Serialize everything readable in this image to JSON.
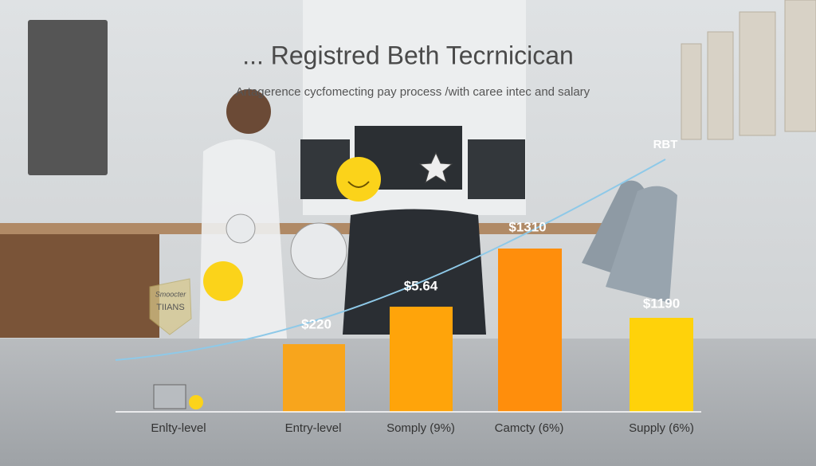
{
  "header": {
    "title": "... Registred Beth Tecrnicican",
    "subtitle": "Artagerence cycfomecting pay process /with caree intec and salary"
  },
  "trend_label": "RBT",
  "badge": {
    "top": "Smoocter",
    "bottom": "TIIANS"
  },
  "columns": [
    {
      "category": "Enlty-level"
    },
    {
      "category": "Entry-level",
      "label": "$220"
    },
    {
      "category": "Somply (9%)",
      "label": "$5.64"
    },
    {
      "category": "Camcty (6%)",
      "label": "$1310"
    },
    {
      "category": "Supply (6%)",
      "label": "$1190"
    }
  ]
}
